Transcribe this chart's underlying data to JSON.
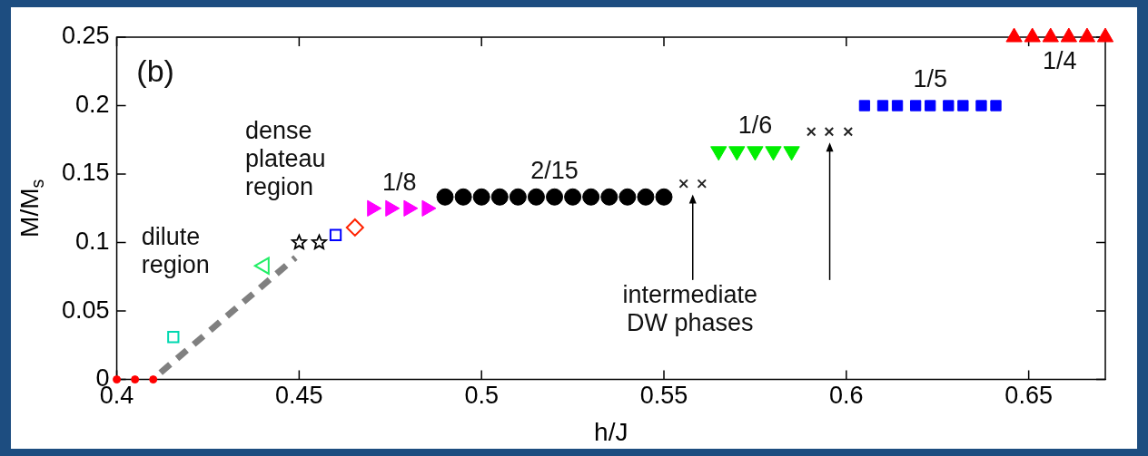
{
  "chart_data": {
    "type": "scatter",
    "xlabel": "h/J",
    "ylabel": "M/M$_{s}$",
    "xlim": [
      0.4,
      0.671
    ],
    "ylim": [
      0,
      0.25
    ],
    "xticks": [
      0.4,
      0.45,
      0.5,
      0.55,
      0.6,
      0.65
    ],
    "yticks": [
      0,
      0.05,
      0.1,
      0.15,
      0.2,
      0.25
    ],
    "grid": false,
    "legend": false,
    "series": [
      {
        "type": "line",
        "line_style": "dashed",
        "marker": "none",
        "color": "#808080",
        "x": [
          0.412,
          0.449
        ],
        "values": [
          0.005,
          0.089
        ]
      },
      {
        "marker": "circle",
        "color": "#ff0000",
        "x": [
          0.4,
          0.405,
          0.41
        ],
        "values": [
          0,
          0,
          0
        ]
      },
      {
        "marker": "square-open",
        "color": "#00d8b0",
        "x": [
          0.4155
        ],
        "values": [
          0.031
        ]
      },
      {
        "marker": "triangle-left-open",
        "color": "#22ee66",
        "x": [
          0.4404
        ],
        "values": [
          0.083
        ]
      },
      {
        "marker": "star",
        "color": "#000000",
        "x": [
          0.45,
          0.4555
        ],
        "values": [
          0.1,
          0.1
        ]
      },
      {
        "marker": "square-open",
        "color": "#0000ff",
        "x": [
          0.46
        ],
        "values": [
          0.1055
        ]
      },
      {
        "marker": "diamond-open",
        "color": "#ff2200",
        "x": [
          0.4653
        ],
        "values": [
          0.111
        ]
      },
      {
        "marker": "triangle-right",
        "color": "#ff00ff",
        "x": [
          0.47,
          0.475,
          0.48,
          0.485
        ],
        "values": [
          0.125,
          0.125,
          0.125,
          0.125
        ]
      },
      {
        "marker": "circle",
        "color": "#000000",
        "x": [
          0.49,
          0.495,
          0.5,
          0.505,
          0.51,
          0.515,
          0.52,
          0.525,
          0.53,
          0.535,
          0.54,
          0.545,
          0.55
        ],
        "values": [
          0.1333,
          0.1333,
          0.1333,
          0.1333,
          0.1333,
          0.1333,
          0.1333,
          0.1333,
          0.1333,
          0.1333,
          0.1333,
          0.1333,
          0.1333
        ]
      },
      {
        "marker": "cross",
        "color": "#222222",
        "x": [
          0.5554,
          0.5604
        ],
        "values": [
          0.143,
          0.143
        ]
      },
      {
        "marker": "triangle-down",
        "color": "#00ee00",
        "x": [
          0.565,
          0.57,
          0.575,
          0.58,
          0.585
        ],
        "values": [
          0.1667,
          0.1667,
          0.1667,
          0.1667,
          0.1667
        ]
      },
      {
        "marker": "cross",
        "color": "#222222",
        "x": [
          0.5904,
          0.5953,
          0.6005
        ],
        "values": [
          0.181,
          0.181,
          0.181
        ]
      },
      {
        "marker": "square",
        "color": "#0000ff",
        "x": [
          0.605,
          0.61,
          0.614,
          0.619,
          0.623,
          0.628,
          0.632,
          0.637,
          0.641
        ],
        "values": [
          0.2,
          0.2,
          0.2,
          0.2,
          0.2,
          0.2,
          0.2,
          0.2,
          0.2
        ]
      },
      {
        "marker": "triangle",
        "color": "#ff0000",
        "x": [
          0.646,
          0.651,
          0.656,
          0.661,
          0.666,
          0.671
        ],
        "values": [
          0.25,
          0.25,
          0.25,
          0.25,
          0.25,
          0.25
        ]
      }
    ],
    "annotations": [
      "(b)",
      "dilute region",
      "dense plateau region",
      "intermediate DW phases",
      {
        "text": "1/8",
        "x": 0.4775,
        "y": 0.125
      },
      {
        "text": "2/15",
        "x": 0.52,
        "y": 0.1333
      },
      {
        "text": "1/6",
        "x": 0.575,
        "y": 0.1667
      },
      {
        "text": "1/5",
        "x": 0.623,
        "y": 0.2
      },
      {
        "text": "1/4",
        "x": 0.6585,
        "y": 0.25
      }
    ]
  }
}
